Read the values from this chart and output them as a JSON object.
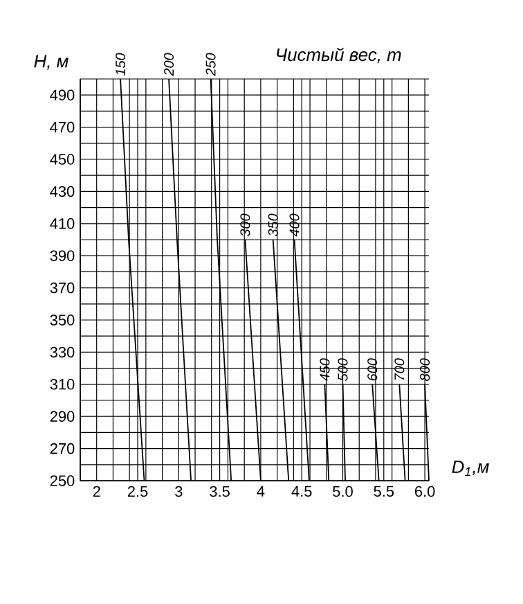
{
  "chart_data": {
    "type": "line",
    "title": "Чистый вес, т",
    "xlabel": "D$_{1}$,м",
    "ylabel": "H, м",
    "xlim": [
      1.8,
      6.05
    ],
    "ylim": [
      250,
      500
    ],
    "xticks": [
      {
        "value": 1.8,
        "label": null
      },
      2,
      {
        "value": 2.2,
        "label": null
      },
      {
        "value": 2.4,
        "label": null
      },
      2.5,
      {
        "value": 2.6,
        "label": null
      },
      {
        "value": 2.8,
        "label": null
      },
      3,
      {
        "value": 3.2,
        "label": null
      },
      {
        "value": 3.4,
        "label": null
      },
      3.5,
      {
        "value": 3.6,
        "label": null
      },
      {
        "value": 3.8,
        "label": null
      },
      4,
      {
        "value": 4.2,
        "label": null
      },
      {
        "value": 4.4,
        "label": null
      },
      4.5,
      {
        "value": 4.6,
        "label": null
      },
      {
        "value": 4.8,
        "label": null
      },
      {
        "value": 5,
        "label": "5.0"
      },
      {
        "value": 5.2,
        "label": null
      },
      {
        "value": 5.4,
        "label": null
      },
      5.5,
      {
        "value": 5.6,
        "label": null
      },
      {
        "value": 5.8,
        "label": null
      },
      {
        "value": 6,
        "label": "6.0"
      }
    ],
    "yticks": [
      250,
      {
        "value": 260,
        "label": null
      },
      270,
      {
        "value": 280,
        "label": null
      },
      290,
      {
        "value": 300,
        "label": null
      },
      310,
      {
        "value": 320,
        "label": null
      },
      330,
      {
        "value": 340,
        "label": null
      },
      350,
      {
        "value": 360,
        "label": null
      },
      370,
      {
        "value": 380,
        "label": null
      },
      390,
      {
        "value": 400,
        "label": null
      },
      410,
      {
        "value": 420,
        "label": null
      },
      430,
      {
        "value": 440,
        "label": null
      },
      450,
      {
        "value": 460,
        "label": null
      },
      470,
      {
        "value": 480,
        "label": null
      },
      490,
      {
        "value": 500,
        "label": null
      }
    ],
    "grid": true,
    "marker": "none",
    "line_style": "solid",
    "series": [
      {
        "name": "150",
        "color": "#000000",
        "x": [
          2.29,
          2.39,
          2.58
        ],
        "values": [
          500,
          400,
          250
        ]
      },
      {
        "name": "200",
        "color": "#000000",
        "x": [
          2.88,
          2.98,
          3.15
        ],
        "values": [
          500,
          400,
          250
        ]
      },
      {
        "name": "250",
        "color": "#000000",
        "x": [
          3.39,
          3.47,
          3.64
        ],
        "values": [
          500,
          400,
          250
        ]
      },
      {
        "name": "300",
        "color": "#000000",
        "x": [
          3.81,
          4.0
        ],
        "values": [
          400,
          250
        ]
      },
      {
        "name": "350",
        "color": "#000000",
        "x": [
          4.15,
          4.34
        ],
        "values": [
          400,
          250
        ]
      },
      {
        "name": "400",
        "color": "#000000",
        "x": [
          4.41,
          4.59
        ],
        "values": [
          400,
          250
        ]
      },
      {
        "name": "450",
        "color": "#000000",
        "x": [
          4.78,
          4.83
        ],
        "values": [
          310,
          250
        ]
      },
      {
        "name": "500",
        "color": "#000000",
        "x": [
          5.0,
          5.03
        ],
        "values": [
          310,
          250
        ]
      },
      {
        "name": "600",
        "color": "#000000",
        "x": [
          5.36,
          5.44
        ],
        "values": [
          310,
          250
        ]
      },
      {
        "name": "700",
        "color": "#000000",
        "x": [
          5.69,
          5.76
        ],
        "values": [
          310,
          250
        ]
      },
      {
        "name": "800",
        "color": "#000000",
        "x": [
          6.0,
          6.05
        ],
        "values": [
          310,
          250
        ]
      }
    ]
  }
}
